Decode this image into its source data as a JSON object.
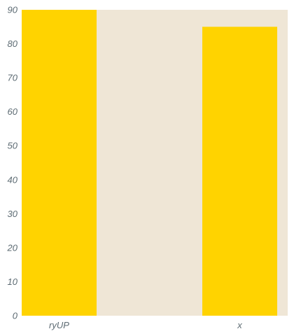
{
  "colors": {
    "plot_background": "#efe6d6",
    "bar": "#ffd300",
    "tick_text": "#5d6b73"
  },
  "chart_data": {
    "type": "bar",
    "categories": [
      "ryUP",
      "x"
    ],
    "values": [
      90,
      85
    ],
    "title": "",
    "xlabel": "",
    "ylabel": "",
    "ylim": [
      0,
      90
    ],
    "yticks": [
      0,
      10,
      20,
      30,
      40,
      50,
      60,
      70,
      80,
      90
    ],
    "grid": false,
    "legend": "none"
  }
}
